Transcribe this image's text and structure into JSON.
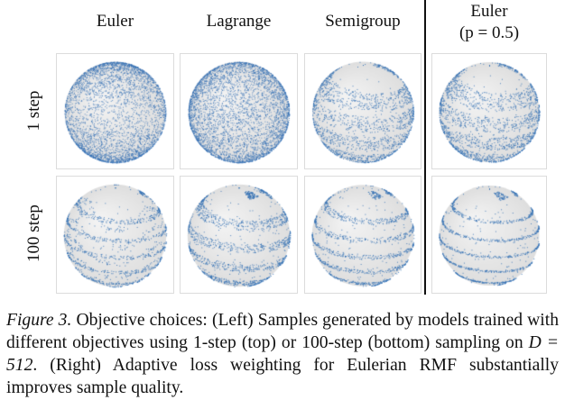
{
  "figure": {
    "column_headers": [
      {
        "line1": "Euler",
        "line2": ""
      },
      {
        "line1": "Lagrange",
        "line2": ""
      },
      {
        "line1": "Semigroup",
        "line2": ""
      },
      {
        "line1": "Euler",
        "line2": "(p = 0.5)"
      }
    ],
    "row_labels": [
      "1 step",
      "100 step"
    ],
    "colors": {
      "point": "#3572b5",
      "sphere": "#e6e6e6",
      "panel_border": "#dcdcdc",
      "divider": "#111111"
    },
    "panels": [
      {
        "row": 0,
        "col": 0,
        "method": "Euler",
        "steps": "1 step",
        "pattern": "diffuse-polar",
        "density": 3800,
        "bands": 0,
        "seed": 11
      },
      {
        "row": 0,
        "col": 1,
        "method": "Lagrange",
        "steps": "1 step",
        "pattern": "uniform",
        "density": 4200,
        "bands": 0,
        "seed": 23
      },
      {
        "row": 0,
        "col": 2,
        "method": "Semigroup",
        "steps": "1 step",
        "pattern": "loose-bands",
        "density": 3600,
        "bands": 4,
        "seed": 37
      },
      {
        "row": 0,
        "col": 3,
        "method": "Euler (p = 0.5)",
        "steps": "1 step",
        "pattern": "loose-bands",
        "density": 3800,
        "bands": 4,
        "seed": 41
      },
      {
        "row": 1,
        "col": 0,
        "method": "Euler",
        "steps": "100 step",
        "pattern": "broken-spiral",
        "density": 2600,
        "bands": 5,
        "seed": 53
      },
      {
        "row": 1,
        "col": 1,
        "method": "Lagrange",
        "steps": "100 step",
        "pattern": "medium-bands",
        "density": 3200,
        "bands": 4,
        "seed": 67
      },
      {
        "row": 1,
        "col": 2,
        "method": "Semigroup",
        "steps": "100 step",
        "pattern": "tight-spiral",
        "density": 2800,
        "bands": 5,
        "seed": 71
      },
      {
        "row": 1,
        "col": 3,
        "method": "Euler (p = 0.5)",
        "steps": "100 step",
        "pattern": "clean-spiral",
        "density": 2600,
        "bands": 5,
        "seed": 83
      }
    ]
  },
  "caption": {
    "label": "Figure 3.",
    "text_before_math": " Objective choices: (Left) Samples generated by models trained with different objectives using 1-step (top) or 100-step (bottom) sampling on ",
    "math": "D = 512",
    "text_after_math": ". (Right) Adaptive loss weighting for Eulerian RMF substantially improves sample quality."
  }
}
